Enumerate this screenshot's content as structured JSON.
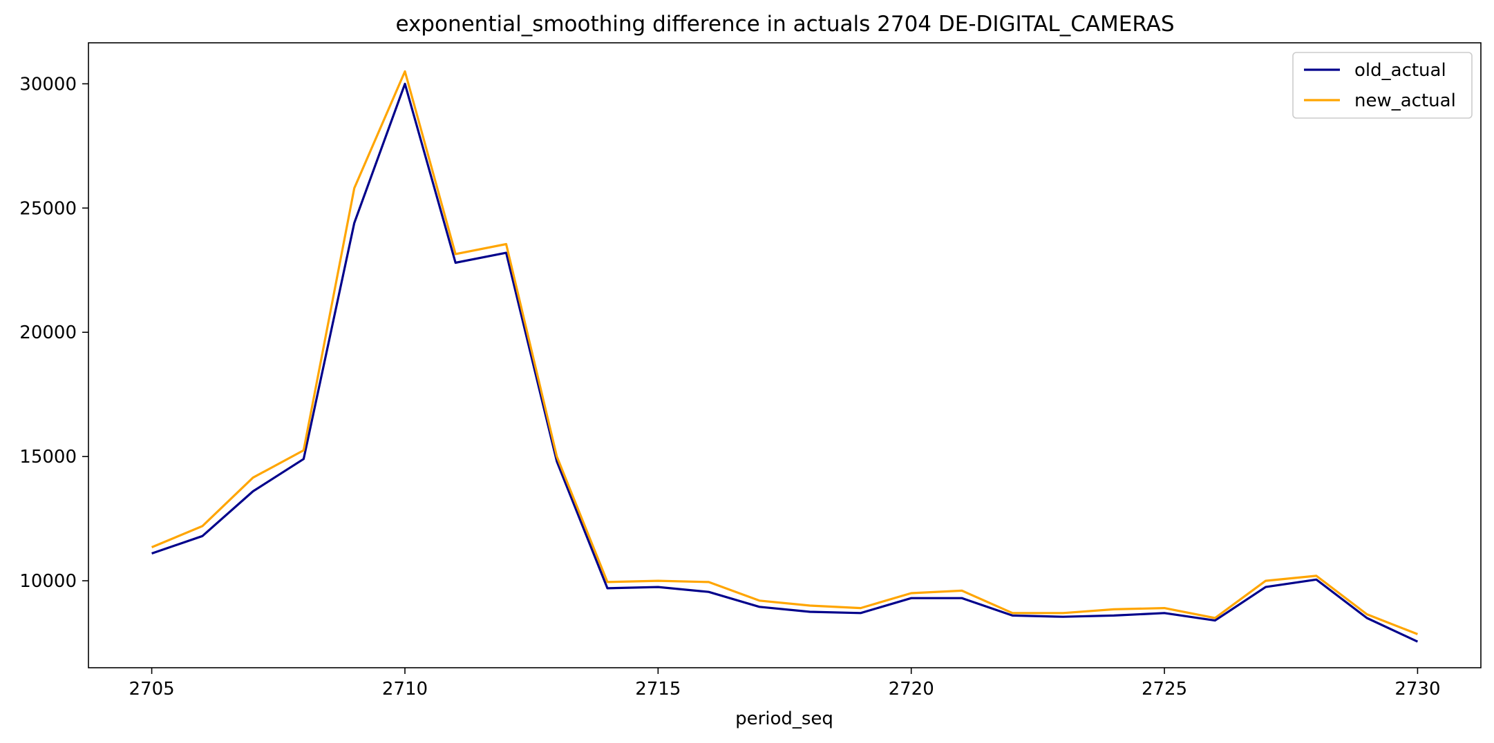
{
  "chart_data": {
    "type": "line",
    "title": "exponential_smoothing difference in actuals 2704 DE-DIGITAL_CAMERAS",
    "xlabel": "period_seq",
    "ylabel": "",
    "x": [
      2705,
      2706,
      2707,
      2708,
      2709,
      2710,
      2711,
      2712,
      2713,
      2714,
      2715,
      2716,
      2717,
      2718,
      2719,
      2720,
      2721,
      2722,
      2723,
      2724,
      2725,
      2726,
      2727,
      2728,
      2729,
      2730
    ],
    "xticks": [
      2705,
      2710,
      2715,
      2720,
      2725,
      2730
    ],
    "yticks": [
      10000,
      15000,
      20000,
      25000,
      30000
    ],
    "xlim": [
      2703.75,
      2731.25
    ],
    "ylim": [
      6500,
      31650
    ],
    "grid": false,
    "legend_position": "top-right",
    "series": [
      {
        "name": "old_actual",
        "color": "#00008b",
        "values": [
          11100,
          11800,
          13600,
          14900,
          24400,
          30000,
          22800,
          23200,
          14800,
          9700,
          9750,
          9550,
          8950,
          8750,
          8700,
          9300,
          9300,
          8600,
          8550,
          8600,
          8700,
          8400,
          9750,
          10050,
          8500,
          7550
        ]
      },
      {
        "name": "new_actual",
        "color": "#ffa500",
        "values": [
          11350,
          12200,
          14150,
          15250,
          25800,
          30500,
          23150,
          23550,
          15000,
          9950,
          10000,
          9950,
          9200,
          9000,
          8900,
          9500,
          9600,
          8700,
          8700,
          8850,
          8900,
          8500,
          10000,
          10200,
          8650,
          7850
        ]
      }
    ]
  }
}
